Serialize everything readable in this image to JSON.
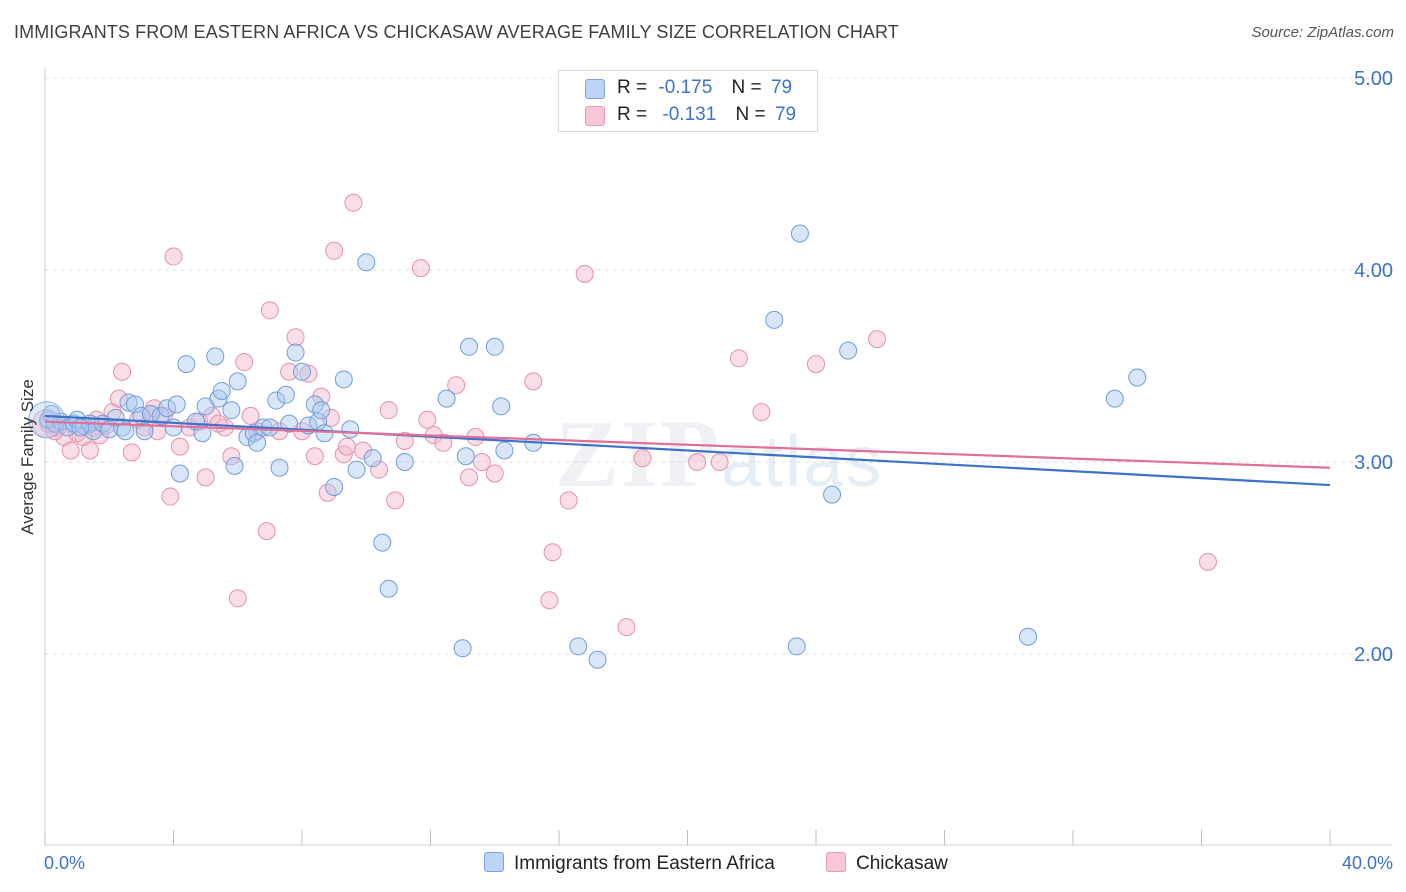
{
  "header": {
    "title": "IMMIGRANTS FROM EASTERN AFRICA VS CHICKASAW AVERAGE FAMILY SIZE CORRELATION CHART",
    "source": "Source: ZipAtlas.com"
  },
  "watermark": {
    "zip": "ZIP",
    "atlas": "atlas"
  },
  "legend": {
    "blue": {
      "r_label": "R =",
      "r_value": "-0.175",
      "n_label": "N =",
      "n_value": "79"
    },
    "pink": {
      "r_label": "R =",
      "r_value": "-0.131",
      "n_label": "N =",
      "n_value": "79"
    }
  },
  "colors": {
    "blue": "#3d72c8",
    "blue_fill": "#a9c8f0",
    "pink": "#e07098",
    "pink_fill": "#f5b5c9"
  },
  "chart_data": {
    "type": "scatter",
    "title": "IMMIGRANTS FROM EASTERN AFRICA VS CHICKASAW AVERAGE FAMILY SIZE CORRELATION CHART",
    "xlabel": "",
    "ylabel": "Average Family Size",
    "xlim": [
      0,
      40
    ],
    "ylim": [
      1.0,
      5.1
    ],
    "x_tick_labels": [
      "0.0%",
      "40.0%"
    ],
    "y_ticks": [
      2.0,
      3.0,
      4.0,
      5.0
    ],
    "y_tick_labels": [
      "2.00",
      "3.00",
      "4.00",
      "5.00"
    ],
    "series": [
      {
        "name": "Immigrants from Eastern Africa",
        "color": "#3d72c8",
        "trend": {
          "x": [
            0,
            40
          ],
          "y": [
            3.24,
            2.88
          ]
        },
        "points": [
          [
            0.1,
            3.22
          ],
          [
            0.3,
            3.2
          ],
          [
            0.5,
            3.21
          ],
          [
            0.7,
            3.18
          ],
          [
            0.9,
            3.2
          ],
          [
            1.0,
            3.22
          ],
          [
            1.2,
            3.19
          ],
          [
            1.4,
            3.2
          ],
          [
            1.5,
            3.16
          ],
          [
            1.8,
            3.2
          ],
          [
            2.0,
            3.17
          ],
          [
            2.2,
            3.23
          ],
          [
            2.4,
            3.18
          ],
          [
            2.5,
            3.16
          ],
          [
            2.6,
            3.31
          ],
          [
            2.8,
            3.3
          ],
          [
            3.0,
            3.24
          ],
          [
            3.1,
            3.16
          ],
          [
            3.3,
            3.25
          ],
          [
            3.6,
            3.24
          ],
          [
            3.8,
            3.28
          ],
          [
            4.0,
            3.18
          ],
          [
            4.1,
            3.3
          ],
          [
            4.2,
            2.94
          ],
          [
            4.4,
            3.51
          ],
          [
            4.7,
            3.21
          ],
          [
            4.9,
            3.15
          ],
          [
            5.0,
            3.29
          ],
          [
            5.3,
            3.55
          ],
          [
            5.4,
            3.33
          ],
          [
            5.5,
            3.37
          ],
          [
            5.8,
            3.27
          ],
          [
            5.9,
            2.98
          ],
          [
            6.0,
            3.42
          ],
          [
            6.3,
            3.13
          ],
          [
            6.5,
            3.15
          ],
          [
            6.6,
            3.1
          ],
          [
            6.8,
            3.18
          ],
          [
            7.0,
            3.18
          ],
          [
            7.2,
            3.32
          ],
          [
            7.3,
            2.97
          ],
          [
            7.5,
            3.35
          ],
          [
            7.6,
            3.2
          ],
          [
            7.8,
            3.57
          ],
          [
            8.0,
            3.47
          ],
          [
            8.2,
            3.19
          ],
          [
            8.4,
            3.3
          ],
          [
            8.5,
            3.21
          ],
          [
            8.6,
            3.27
          ],
          [
            8.7,
            3.15
          ],
          [
            9.0,
            2.87
          ],
          [
            9.3,
            3.43
          ],
          [
            9.5,
            3.17
          ],
          [
            9.7,
            2.96
          ],
          [
            10.0,
            4.04
          ],
          [
            10.2,
            3.02
          ],
          [
            10.5,
            2.58
          ],
          [
            10.7,
            2.34
          ],
          [
            11.2,
            3
          ],
          [
            12.5,
            3.33
          ],
          [
            13.0,
            2.03
          ],
          [
            13.1,
            3.03
          ],
          [
            13.2,
            3.6
          ],
          [
            14.0,
            3.6
          ],
          [
            14.2,
            3.29
          ],
          [
            14.3,
            3.06
          ],
          [
            15.2,
            3.1
          ],
          [
            16.6,
            2.04
          ],
          [
            17.2,
            1.97
          ],
          [
            22.7,
            3.74
          ],
          [
            23.4,
            2.04
          ],
          [
            23.5,
            4.19
          ],
          [
            24.5,
            2.83
          ],
          [
            25.0,
            3.58
          ],
          [
            30.6,
            2.09
          ],
          [
            33.3,
            3.33
          ],
          [
            34.0,
            3.44
          ],
          [
            0.2,
            3.25
          ],
          [
            1.1,
            3.18
          ]
        ]
      },
      {
        "name": "Chickasaw",
        "color": "#e07098",
        "trend": {
          "x": [
            0,
            40
          ],
          "y": [
            3.21,
            2.97
          ]
        },
        "points": [
          [
            0.1,
            3.2
          ],
          [
            0.4,
            3.18
          ],
          [
            0.6,
            3.13
          ],
          [
            0.8,
            3.06
          ],
          [
            1.0,
            3.15
          ],
          [
            1.2,
            3.13
          ],
          [
            1.4,
            3.06
          ],
          [
            1.5,
            3.18
          ],
          [
            1.7,
            3.14
          ],
          [
            1.9,
            3.19
          ],
          [
            2.1,
            3.26
          ],
          [
            2.3,
            3.33
          ],
          [
            2.4,
            3.47
          ],
          [
            2.7,
            3.05
          ],
          [
            2.9,
            3.22
          ],
          [
            3.1,
            3.18
          ],
          [
            3.3,
            3.25
          ],
          [
            3.5,
            3.16
          ],
          [
            3.7,
            3.24
          ],
          [
            3.9,
            2.82
          ],
          [
            4.0,
            4.07
          ],
          [
            4.2,
            3.08
          ],
          [
            4.5,
            3.18
          ],
          [
            4.8,
            3.21
          ],
          [
            5.0,
            2.92
          ],
          [
            5.2,
            3.24
          ],
          [
            5.6,
            3.18
          ],
          [
            5.8,
            3.03
          ],
          [
            6.0,
            2.29
          ],
          [
            6.2,
            3.52
          ],
          [
            6.4,
            3.24
          ],
          [
            6.6,
            3.16
          ],
          [
            6.9,
            2.64
          ],
          [
            7.0,
            3.79
          ],
          [
            7.3,
            3.16
          ],
          [
            7.6,
            3.47
          ],
          [
            7.8,
            3.65
          ],
          [
            8.0,
            3.16
          ],
          [
            8.2,
            3.46
          ],
          [
            8.4,
            3.03
          ],
          [
            8.6,
            3.34
          ],
          [
            8.8,
            2.84
          ],
          [
            8.9,
            3.23
          ],
          [
            9.0,
            4.1
          ],
          [
            9.3,
            3.04
          ],
          [
            9.6,
            4.35
          ],
          [
            9.9,
            3.06
          ],
          [
            10.4,
            2.96
          ],
          [
            10.7,
            3.27
          ],
          [
            10.9,
            2.8
          ],
          [
            11.2,
            3.11
          ],
          [
            11.7,
            4.01
          ],
          [
            11.9,
            3.22
          ],
          [
            12.1,
            3.14
          ],
          [
            12.4,
            3.1
          ],
          [
            12.8,
            3.4
          ],
          [
            13.2,
            2.92
          ],
          [
            13.4,
            3.13
          ],
          [
            13.6,
            3
          ],
          [
            14.0,
            2.94
          ],
          [
            15.2,
            3.42
          ],
          [
            15.7,
            2.28
          ],
          [
            15.8,
            2.53
          ],
          [
            16.3,
            2.8
          ],
          [
            16.8,
            3.98
          ],
          [
            18.1,
            2.14
          ],
          [
            18.6,
            3.02
          ],
          [
            20.3,
            3
          ],
          [
            21.0,
            3
          ],
          [
            21.6,
            3.54
          ],
          [
            22.3,
            3.26
          ],
          [
            24.0,
            3.51
          ],
          [
            25.9,
            3.64
          ],
          [
            36.2,
            2.48
          ],
          [
            0.3,
            3.16
          ],
          [
            1.6,
            3.22
          ],
          [
            3.4,
            3.28
          ],
          [
            5.4,
            3.2
          ],
          [
            9.4,
            3.08
          ]
        ]
      }
    ]
  },
  "bottom_legend": {
    "blue_label": "Immigrants from Eastern Africa",
    "pink_label": "Chickasaw"
  }
}
